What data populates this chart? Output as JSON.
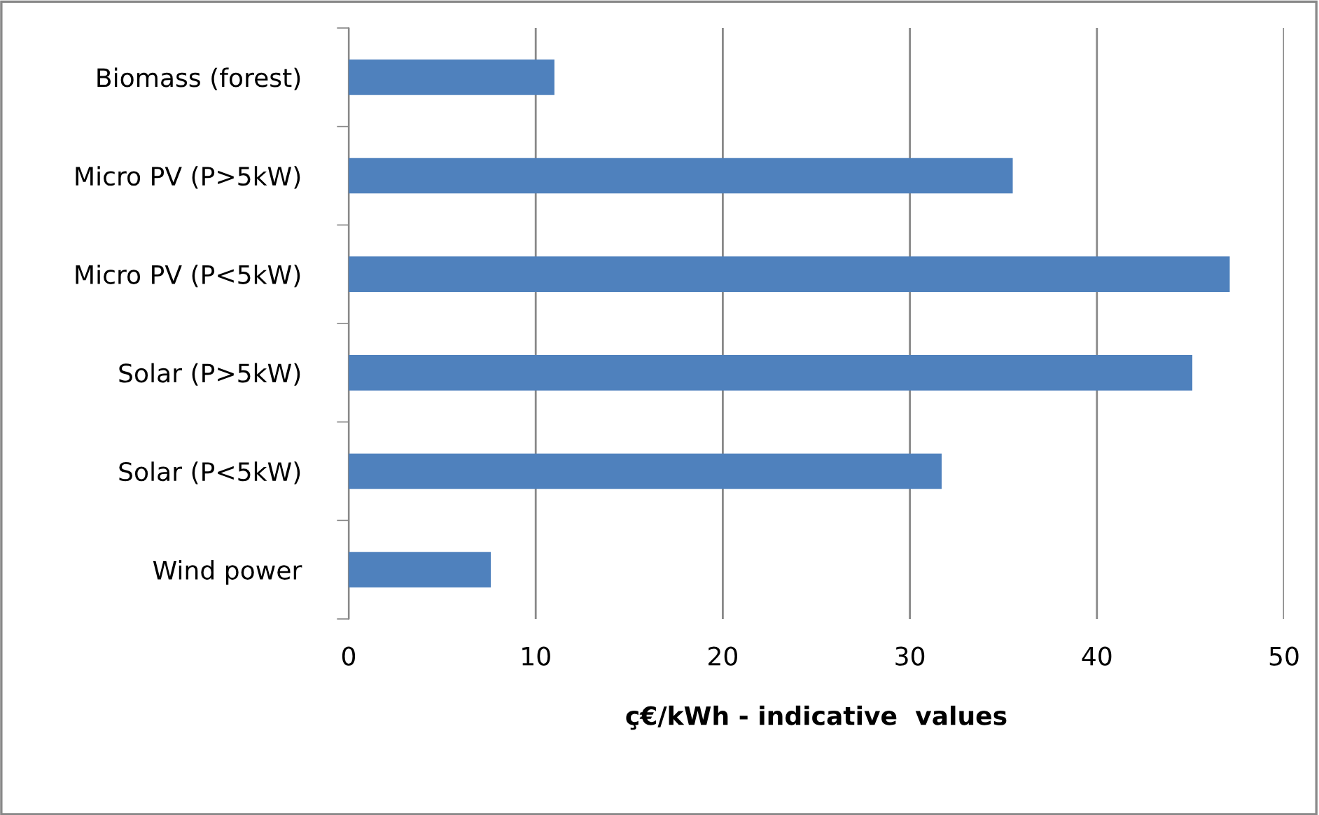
{
  "chart_data": {
    "type": "bar",
    "orientation": "horizontal",
    "xlabel": "ç€/kWh - indicative  values",
    "categories": [
      "Biomass (forest)",
      "Micro PV (P>5kW)",
      "Micro PV (P<5kW)",
      "Solar (P>5kW)",
      "Solar (P<5kW)",
      "Wind power"
    ],
    "values": [
      11,
      35.5,
      47.1,
      45.1,
      31.7,
      7.6
    ],
    "color": "#4f81bd",
    "xlim": [
      0,
      50
    ],
    "xticks": [
      0,
      10,
      20,
      30,
      40,
      50
    ],
    "grid": "x"
  }
}
